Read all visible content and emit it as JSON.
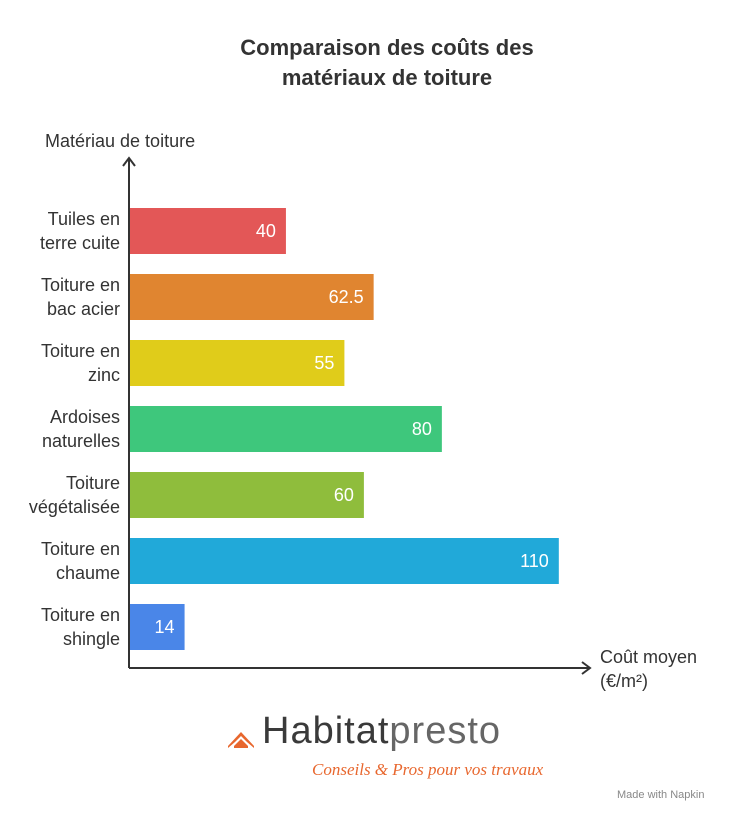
{
  "chart_data": {
    "type": "bar",
    "orientation": "horizontal",
    "title": "Comparaison des coûts des matériaux de toiture",
    "y_label": "Matériau de toiture",
    "x_label": "Coût moyen (€/m²)",
    "categories": [
      "Tuiles en terre cuite",
      "Toiture en bac acier",
      "Toiture en zinc",
      "Ardoises naturelles",
      "Toiture végétalisée",
      "Toiture en chaume",
      "Toiture en shingle"
    ],
    "values": [
      40,
      62.5,
      55,
      80,
      60,
      110,
      14
    ],
    "colors": [
      "#e35757",
      "#e08530",
      "#e0cc1a",
      "#3ec77c",
      "#8fbd3c",
      "#21a9d9",
      "#4a86e8"
    ],
    "xlim": [
      0,
      118
    ]
  },
  "branding": {
    "logo_part1": "Habitat",
    "logo_part2": "presto",
    "tagline": "Conseils & Pros pour vos travaux",
    "credit": "Made with Napkin"
  }
}
